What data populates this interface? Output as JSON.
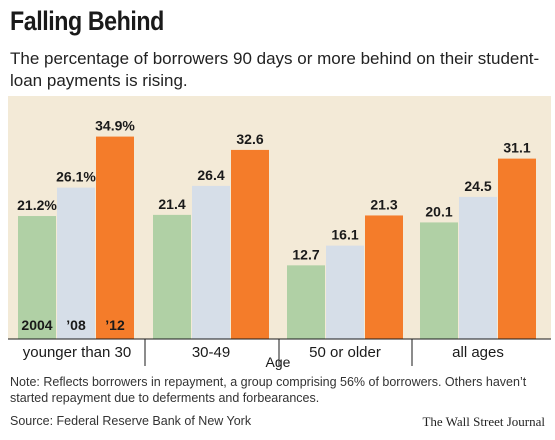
{
  "title": "Falling Behind",
  "subtitle": "The percentage of borrowers 90 days or more behind on their student-loan payments is rising.",
  "note": "Note: Reflects borrowers in repayment, a group comprising 56% of borrowers. Others haven’t started repayment due to deferments and forbearances.",
  "source": "Source: Federal Reserve Bank of New York",
  "credit": "The Wall Street Journal",
  "chart_data": {
    "type": "bar",
    "title": "Falling Behind",
    "xlabel": "Age",
    "ylabel": "",
    "categories": [
      "younger than 30",
      "30-49",
      "50 or older",
      "all ages"
    ],
    "series": [
      {
        "name": "2004",
        "color": "#b0d0a5",
        "values": [
          21.2,
          21.4,
          12.7,
          20.1
        ],
        "labels": [
          "21.2%",
          "21.4",
          "12.7",
          "20.1"
        ]
      },
      {
        "name": "’08",
        "color": "#d6dee8",
        "values": [
          26.1,
          26.4,
          16.1,
          24.5
        ],
        "labels": [
          "26.1%",
          "26.4",
          "16.1",
          "24.5"
        ]
      },
      {
        "name": "’12",
        "color": "#f47c2a",
        "values": [
          34.9,
          32.6,
          21.3,
          31.1
        ],
        "labels": [
          "34.9%",
          "32.6",
          "21.3",
          "31.1"
        ]
      }
    ],
    "ylim": [
      0,
      36
    ],
    "grid": false,
    "legend": "inside first group bars (bottom)"
  }
}
